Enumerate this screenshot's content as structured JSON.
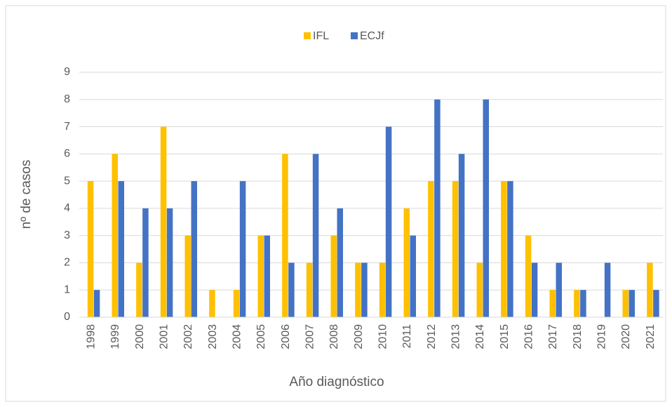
{
  "chart_data": {
    "type": "bar",
    "x_label": "Año diagnóstico",
    "y_label": "nº de casos",
    "categories": [
      "1998",
      "1999",
      "2000",
      "2001",
      "2002",
      "2003",
      "2004",
      "2005",
      "2006",
      "2007",
      "2008",
      "2009",
      "2010",
      "2011",
      "2012",
      "2013",
      "2014",
      "2015",
      "2016",
      "2017",
      "2018",
      "2019",
      "2020",
      "2021"
    ],
    "series": [
      {
        "name": "IFL",
        "color": "#ffc000",
        "values": [
          5,
          6,
          2,
          7,
          3,
          1,
          1,
          3,
          6,
          2,
          3,
          2,
          2,
          4,
          5,
          5,
          2,
          5,
          3,
          1,
          1,
          0,
          1,
          2
        ]
      },
      {
        "name": "ECJf",
        "color": "#4472c4",
        "values": [
          1,
          5,
          4,
          4,
          5,
          0,
          5,
          3,
          2,
          6,
          4,
          2,
          7,
          3,
          8,
          6,
          8,
          5,
          2,
          2,
          1,
          2,
          1,
          1
        ]
      }
    ],
    "ylim": [
      0,
      9
    ],
    "yticks": [
      0,
      1,
      2,
      3,
      4,
      5,
      6,
      7,
      8,
      9
    ],
    "grid": true,
    "legend": "top"
  }
}
